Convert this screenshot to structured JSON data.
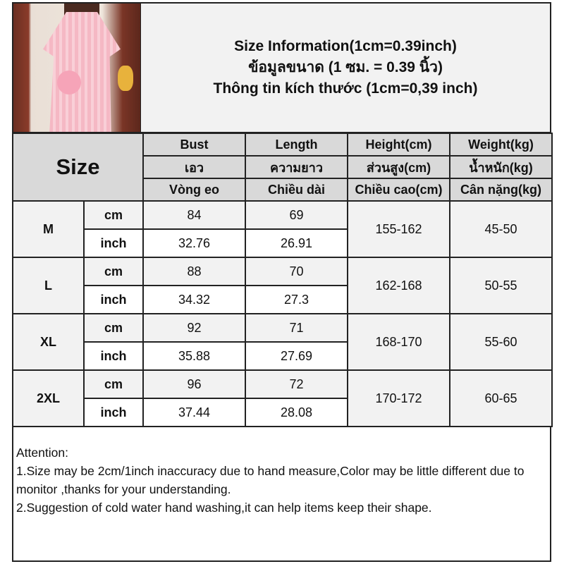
{
  "title_lines": [
    "Size Information(1cm=0.39inch)",
    "ข้อมูลขนาด (1 ซม. = 0.39 นิ้ว)",
    "Thông tin kích thước (1cm=0,39 inch)"
  ],
  "size_header": "Size",
  "columns": [
    {
      "en": "Bust",
      "th": "เอว",
      "vi": "Vòng eo"
    },
    {
      "en": "Length",
      "th": "ความยาว",
      "vi": "Chiều dài"
    },
    {
      "en": "Height(cm)",
      "th": "ส่วนสูง(cm)",
      "vi": "Chiều cao(cm)"
    },
    {
      "en": "Weight(kg)",
      "th": "น้ำหนัก(kg)",
      "vi": "Cân nặng(kg)"
    }
  ],
  "units": {
    "cm": "cm",
    "inch": "inch"
  },
  "rows": [
    {
      "size": "M",
      "bust_cm": "84",
      "length_cm": "69",
      "bust_in": "32.76",
      "length_in": "26.91",
      "height": "155-162",
      "weight": "45-50"
    },
    {
      "size": "L",
      "bust_cm": "88",
      "length_cm": "70",
      "bust_in": "34.32",
      "length_in": "27.3",
      "height": "162-168",
      "weight": "50-55"
    },
    {
      "size": "XL",
      "bust_cm": "92",
      "length_cm": "71",
      "bust_in": "35.88",
      "length_in": "27.69",
      "height": "168-170",
      "weight": "55-60"
    },
    {
      "size": "2XL",
      "bust_cm": "96",
      "length_cm": "72",
      "bust_in": "37.44",
      "length_in": "28.08",
      "height": "170-172",
      "weight": "60-65"
    }
  ],
  "attention": {
    "heading": "Attention:",
    "notes": [
      "1.Size may be 2cm/1inch inaccuracy due to hand measure,Color may be little different due to monitor ,thanks for your understanding.",
      "2.Suggestion of cold water hand washing,it can help items keep their shape."
    ]
  },
  "colors": {
    "header_gray": "#d9d9d9",
    "light_gray": "#f2f2f2",
    "border": "#222222"
  }
}
